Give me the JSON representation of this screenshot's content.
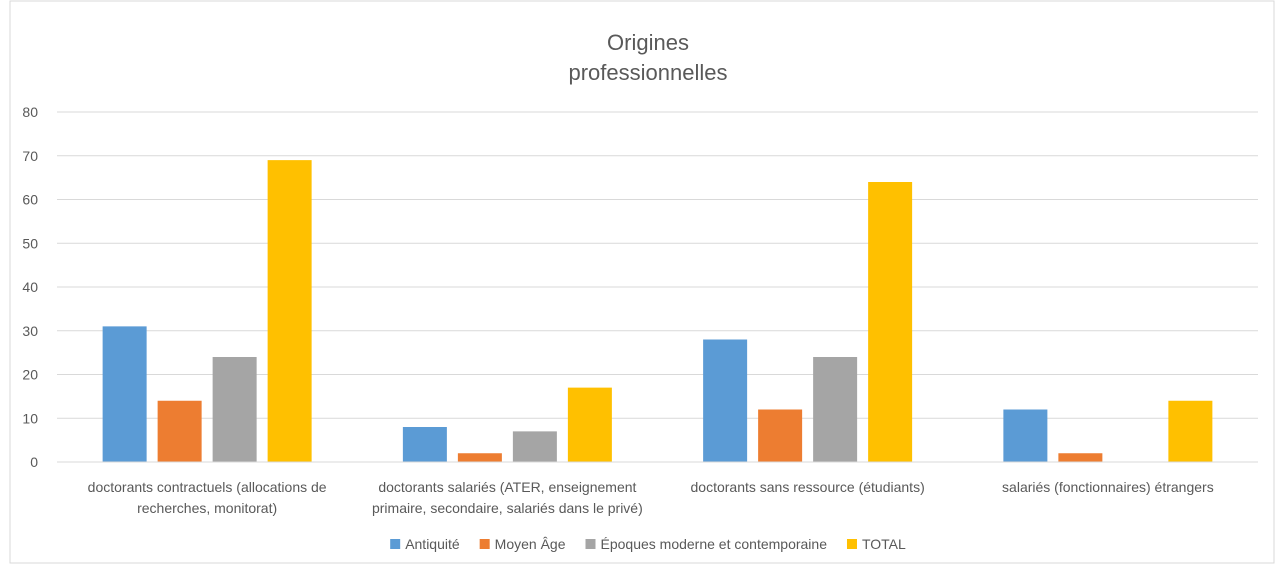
{
  "chart_data": {
    "type": "bar",
    "title_lines": [
      "Origines",
      "professionnelles"
    ],
    "categories": [
      [
        "doctorants contractuels (allocations de",
        "recherches, monitorat)"
      ],
      [
        "doctorants salariés (ATER, enseignement",
        "primaire, secondaire, salariés dans le privé)"
      ],
      [
        "doctorants sans ressource (étudiants)"
      ],
      [
        "salariés (fonctionnaires) étrangers"
      ]
    ],
    "series": [
      {
        "name": "Antiquité",
        "color": "#5B9BD5",
        "values": [
          31,
          8,
          28,
          12
        ]
      },
      {
        "name": "Moyen Âge",
        "color": "#ED7D31",
        "values": [
          14,
          2,
          12,
          2
        ]
      },
      {
        "name": "Époques moderne et contemporaine",
        "color": "#A5A5A5",
        "values": [
          24,
          7,
          24,
          0
        ]
      },
      {
        "name": "TOTAL",
        "color": "#FFC000",
        "values": [
          69,
          17,
          64,
          14
        ]
      }
    ],
    "yticks": [
      0,
      10,
      20,
      30,
      40,
      50,
      60,
      70,
      80
    ],
    "ylim": [
      0,
      80
    ],
    "grid": true,
    "legend_position": "bottom"
  }
}
